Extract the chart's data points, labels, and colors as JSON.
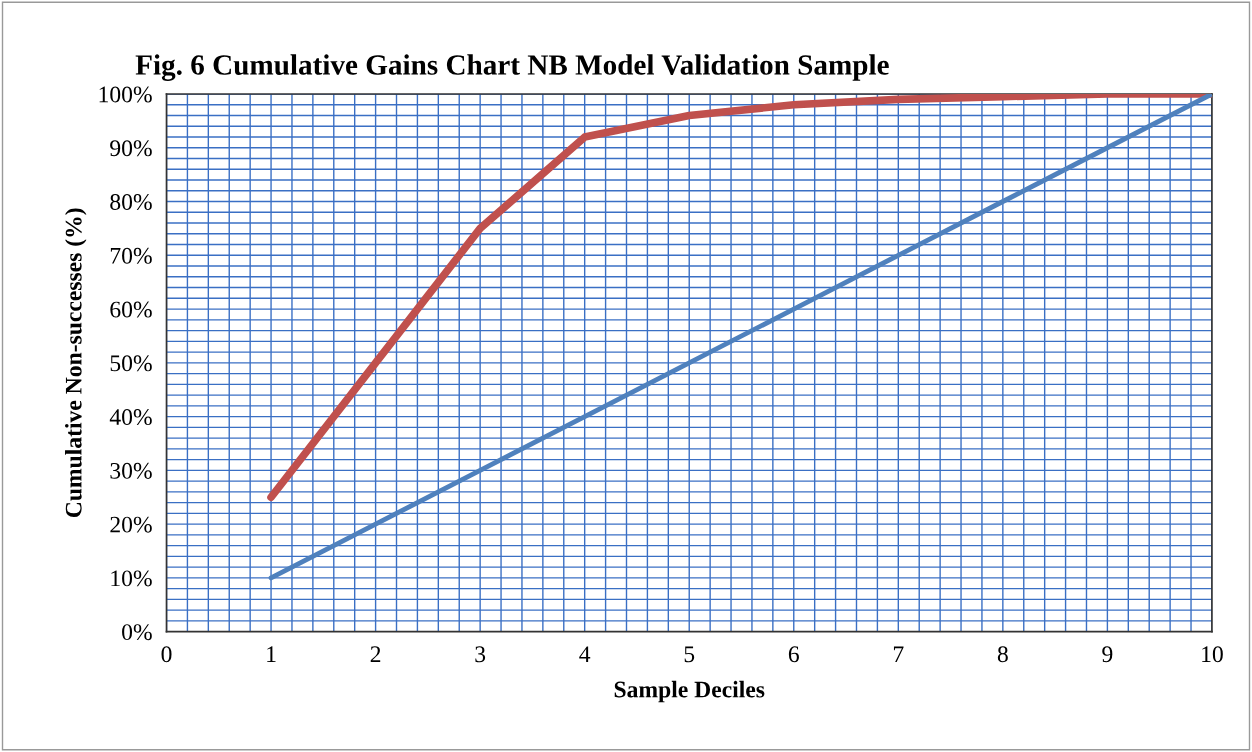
{
  "chart_data": {
    "type": "line",
    "title": "Fig. 6 Cumulative Gains Chart NB Model Validation Sample",
    "xlabel": "Sample Deciles",
    "ylabel": "Cumulative Non-successes (%)",
    "x": [
      1,
      2,
      3,
      4,
      5,
      6,
      7,
      8,
      9,
      10
    ],
    "series": [
      {
        "color": "#c0504d",
        "values": [
          25,
          50,
          75,
          92,
          96,
          98,
          99,
          99.5,
          100,
          100
        ]
      },
      {
        "color": "#4f81bd",
        "values": [
          10,
          20,
          30,
          40,
          50,
          60,
          70,
          80,
          90,
          100
        ]
      }
    ],
    "xlim": [
      0,
      10
    ],
    "xticks": [
      0,
      1,
      2,
      3,
      4,
      5,
      6,
      7,
      8,
      9,
      10
    ],
    "ylim": [
      0,
      100
    ],
    "yticks": [
      {
        "value": 0,
        "label": "0%"
      },
      {
        "value": 10,
        "label": "10%"
      },
      {
        "value": 20,
        "label": "20%"
      },
      {
        "value": 30,
        "label": "30%"
      },
      {
        "value": 40,
        "label": "40%"
      },
      {
        "value": 50,
        "label": "50%"
      },
      {
        "value": 60,
        "label": "60%"
      },
      {
        "value": 70,
        "label": "70%"
      },
      {
        "value": 80,
        "label": "80%"
      },
      {
        "value": 90,
        "label": "90%"
      },
      {
        "value": 100,
        "label": "100%"
      }
    ],
    "grid": true,
    "legend": false,
    "marker": "none",
    "line_style": "solid"
  }
}
